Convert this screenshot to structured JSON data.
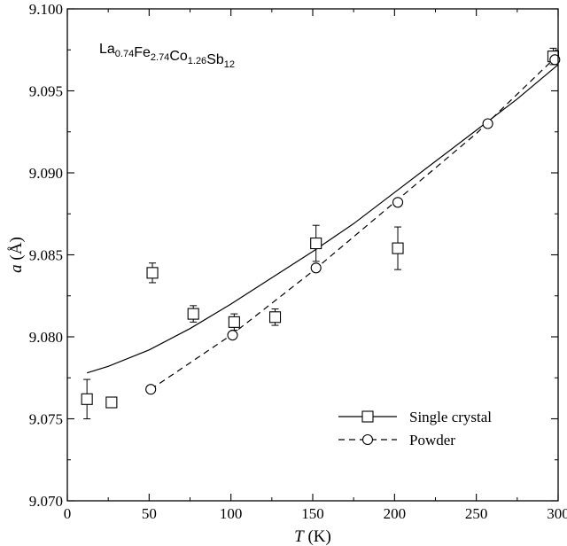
{
  "chart_data": {
    "type": "scatter",
    "xlabel": {
      "symbol": "T",
      "unit": "(K)"
    },
    "ylabel": {
      "symbol": "a",
      "unit": "(Å)"
    },
    "xlim": [
      0,
      300
    ],
    "ylim": [
      9.07,
      9.1
    ],
    "xticks": [
      0,
      50,
      100,
      150,
      200,
      250,
      300
    ],
    "xtick_labels": [
      "0",
      "50",
      "100",
      "150",
      "200",
      "250",
      "300"
    ],
    "yticks": [
      9.07,
      9.075,
      9.08,
      9.085,
      9.09,
      9.095,
      9.1
    ],
    "ytick_labels": [
      "9.070",
      "9.075",
      "9.080",
      "9.085",
      "9.090",
      "9.095",
      "9.100"
    ],
    "grid": false,
    "legend_position": "lower-right",
    "annotation": {
      "parts": [
        {
          "text": "La",
          "sub": "0.74"
        },
        {
          "text": "Fe",
          "sub": "2.74"
        },
        {
          "text": "Co",
          "sub": "1.26"
        },
        {
          "text": "Sb",
          "sub": "12"
        }
      ]
    },
    "series": [
      {
        "name": "Single crystal",
        "marker": "square",
        "line": "solid",
        "points": [
          {
            "x": 12,
            "y": 9.0762,
            "err": 0.0012
          },
          {
            "x": 27,
            "y": 9.076,
            "err": 0.0003
          },
          {
            "x": 52,
            "y": 9.0839,
            "err": 0.0006
          },
          {
            "x": 77,
            "y": 9.0814,
            "err": 0.0005
          },
          {
            "x": 102,
            "y": 9.0809,
            "err": 0.0005
          },
          {
            "x": 127,
            "y": 9.0812,
            "err": 0.0005
          },
          {
            "x": 152,
            "y": 9.0857,
            "err": 0.0011
          },
          {
            "x": 202,
            "y": 9.0854,
            "err": 0.0013
          },
          {
            "x": 297,
            "y": 9.0971,
            "err": 0.0005
          }
        ],
        "fit": {
          "x": [
            12,
            25,
            50,
            75,
            100,
            125,
            150,
            175,
            200,
            225,
            250,
            275,
            300
          ],
          "y": [
            9.0778,
            9.0782,
            9.0792,
            9.0805,
            9.082,
            9.0836,
            9.0852,
            9.0869,
            9.0888,
            9.0907,
            9.0926,
            9.0945,
            9.0966
          ]
        }
      },
      {
        "name": "Powder",
        "marker": "circle",
        "line": "dashed",
        "points": [
          {
            "x": 51,
            "y": 9.0768
          },
          {
            "x": 101,
            "y": 9.0801
          },
          {
            "x": 152,
            "y": 9.0842
          },
          {
            "x": 202,
            "y": 9.0882
          },
          {
            "x": 257,
            "y": 9.093
          },
          {
            "x": 298,
            "y": 9.0969
          }
        ],
        "fit": {
          "x": [
            51,
            100,
            150,
            200,
            250,
            300
          ],
          "y": [
            9.0768,
            9.0801,
            9.084,
            9.0882,
            9.0924,
            9.0972
          ]
        }
      }
    ]
  }
}
